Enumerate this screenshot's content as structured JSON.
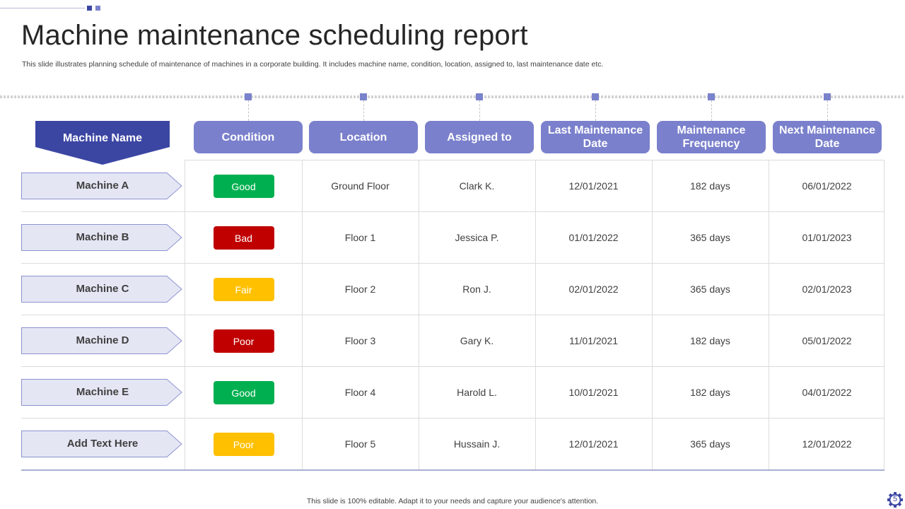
{
  "header": {
    "title": "Machine maintenance scheduling report",
    "subtitle": "This slide illustrates planning schedule of maintenance of machines in a corporate building. It includes machine name, condition, location, assigned to, last maintenance date etc."
  },
  "table": {
    "machine_name_header": "Machine Name",
    "columns": [
      "Condition",
      "Location",
      "Assigned to",
      "Last Maintenance Date",
      "Maintenance Frequency",
      "Next Maintenance Date"
    ],
    "rows": [
      {
        "machine": "Machine A",
        "condition": "Good",
        "condition_color": "#00b050",
        "location": "Ground Floor",
        "assigned": "Clark K.",
        "last": "12/01/2021",
        "frequency": "182 days",
        "next": "06/01/2022"
      },
      {
        "machine": "Machine B",
        "condition": "Bad",
        "condition_color": "#c00000",
        "location": "Floor 1",
        "assigned": "Jessica P.",
        "last": "01/01/2022",
        "frequency": "365 days",
        "next": "01/01/2023"
      },
      {
        "machine": "Machine C",
        "condition": "Fair",
        "condition_color": "#ffc000",
        "location": "Floor 2",
        "assigned": "Ron J.",
        "last": "02/01/2022",
        "frequency": "365 days",
        "next": "02/01/2023"
      },
      {
        "machine": "Machine D",
        "condition": "Poor",
        "condition_color": "#c00000",
        "location": "Floor 3",
        "assigned": "Gary K.",
        "last": "11/01/2021",
        "frequency": "182 days",
        "next": "05/01/2022"
      },
      {
        "machine": "Machine E",
        "condition": "Good",
        "condition_color": "#00b050",
        "location": "Floor 4",
        "assigned": "Harold L.",
        "last": "10/01/2021",
        "frequency": "182 days",
        "next": "04/01/2022"
      },
      {
        "machine": "Add  Text Here",
        "condition": "Poor",
        "condition_color": "#ffc000",
        "location": "Floor 5",
        "assigned": "Hussain J.",
        "last": "12/01/2021",
        "frequency": "365 days",
        "next": "12/01/2022"
      }
    ]
  },
  "footer": {
    "note": "This slide is 100% editable. Adapt it to your needs and capture your audience's attention.",
    "page_number": "5",
    "page_icon": "gear-icon"
  },
  "colors": {
    "accent_dark": "#3b46a3",
    "accent": "#7a80cc",
    "row_label_fill": "#e4e6f4",
    "row_label_border": "#8d93cf"
  }
}
